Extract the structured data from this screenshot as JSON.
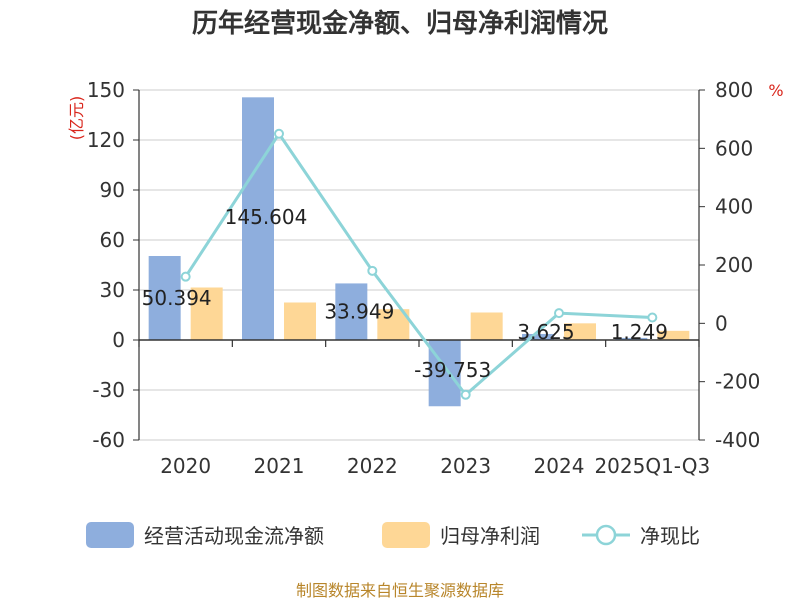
{
  "chart_data": {
    "type": "bar",
    "title": "历年经营现金净额、归母净利润情况",
    "categories": [
      "2020",
      "2021",
      "2022",
      "2023",
      "2024",
      "2025Q1-Q3"
    ],
    "series": [
      {
        "name": "经营活动现金流净额",
        "type": "bar",
        "axis": "left",
        "color": "#8eaedd",
        "values": [
          50.394,
          145.604,
          33.949,
          -39.753,
          3.625,
          1.249
        ],
        "labels": [
          "50.394",
          "145.604",
          "33.949",
          "-39.753",
          "3.625",
          "1.249"
        ]
      },
      {
        "name": "归母净利润",
        "type": "bar",
        "axis": "left",
        "color": "#fed796",
        "values": [
          31.5,
          22.5,
          18.5,
          16.5,
          10.0,
          5.5
        ]
      },
      {
        "name": "净现比",
        "type": "line",
        "axis": "right",
        "color": "#8dd4d8",
        "values": [
          160,
          650,
          180,
          -245,
          35,
          20
        ]
      }
    ],
    "left_axis": {
      "unit": "(亿元)",
      "ylim": [
        -60,
        150
      ],
      "ticks": [
        -60,
        -30,
        0,
        30,
        60,
        90,
        120,
        150
      ]
    },
    "right_axis": {
      "unit": "%",
      "ylim": [
        -400,
        800
      ],
      "ticks": [
        -400,
        -200,
        0,
        200,
        400,
        600,
        800
      ]
    },
    "grid": true,
    "legend_position": "bottom"
  },
  "source": "制图数据来自恒生聚源数据库"
}
